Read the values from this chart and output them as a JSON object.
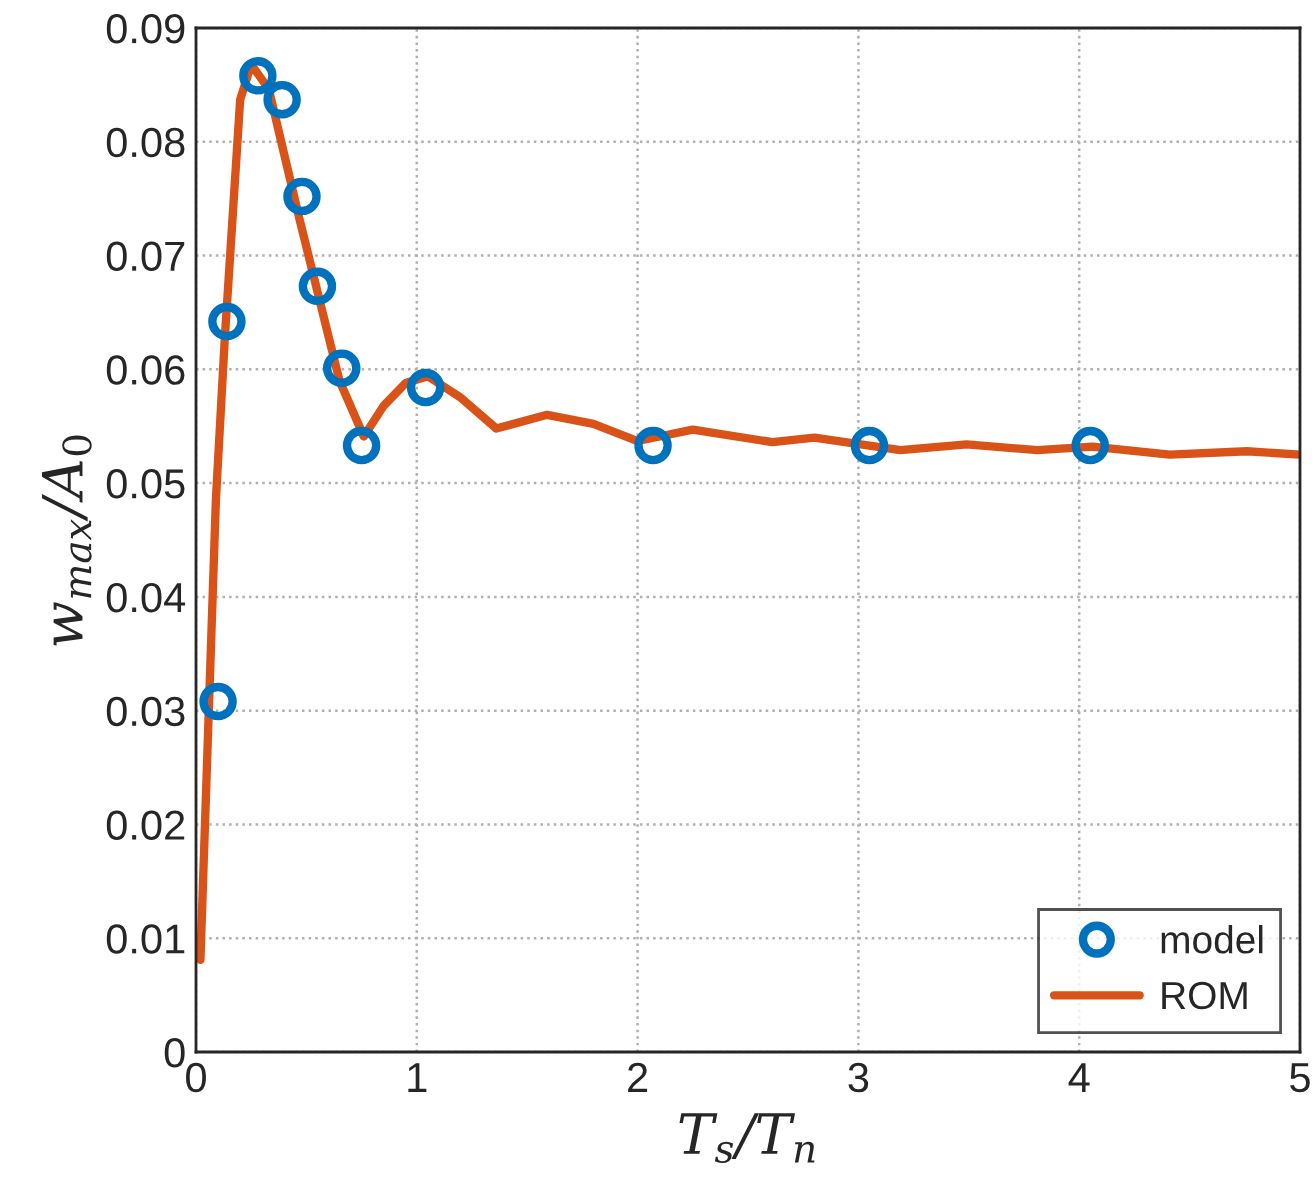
{
  "chart_data": {
    "type": "line",
    "xlabel": "T$_{s}$/T$_{n}$",
    "ylabel": "w$_{max}$/A$_{0}$",
    "xlim": [
      0,
      5
    ],
    "xticks": [
      0,
      1,
      2,
      3,
      4,
      5
    ],
    "ylim": [
      0,
      0.09
    ],
    "yticks": [
      0,
      0.01,
      0.02,
      0.03,
      0.04,
      0.05,
      0.06,
      0.07,
      0.08,
      0.09
    ],
    "grid": true,
    "legend": "bottom right",
    "series": [
      {
        "name": "model",
        "type": "scatter",
        "marker": "circle",
        "color": "#0072bd",
        "x": [
          0.1,
          0.14,
          0.28,
          0.39,
          0.48,
          0.55,
          0.66,
          0.75,
          1.04,
          2.07,
          3.05,
          4.05
        ],
        "values": [
          0.0308,
          0.0642,
          0.0858,
          0.0837,
          0.0752,
          0.0673,
          0.0601,
          0.0533,
          0.0584,
          0.0533,
          0.0533,
          0.0533
        ]
      },
      {
        "name": "ROM",
        "marker": "none",
        "line_style": "solid",
        "color": "#d95319",
        "x": [
          0.02,
          0.09,
          0.13,
          0.2,
          0.25,
          0.33,
          0.47,
          0.65,
          0.76,
          0.85,
          0.95,
          1.05,
          1.2,
          1.36,
          1.59,
          1.8,
          2.0,
          2.25,
          2.61,
          2.8,
          3.19,
          3.49,
          3.81,
          4.06,
          4.41,
          4.76,
          5.0
        ],
        "values": [
          0.0081,
          0.0485,
          0.0626,
          0.0837,
          0.0868,
          0.0846,
          0.0731,
          0.059,
          0.0541,
          0.0568,
          0.0588,
          0.0594,
          0.0575,
          0.0548,
          0.056,
          0.0552,
          0.0537,
          0.0547,
          0.0536,
          0.054,
          0.0529,
          0.0534,
          0.0529,
          0.0532,
          0.0525,
          0.0528,
          0.0525
        ]
      }
    ]
  }
}
